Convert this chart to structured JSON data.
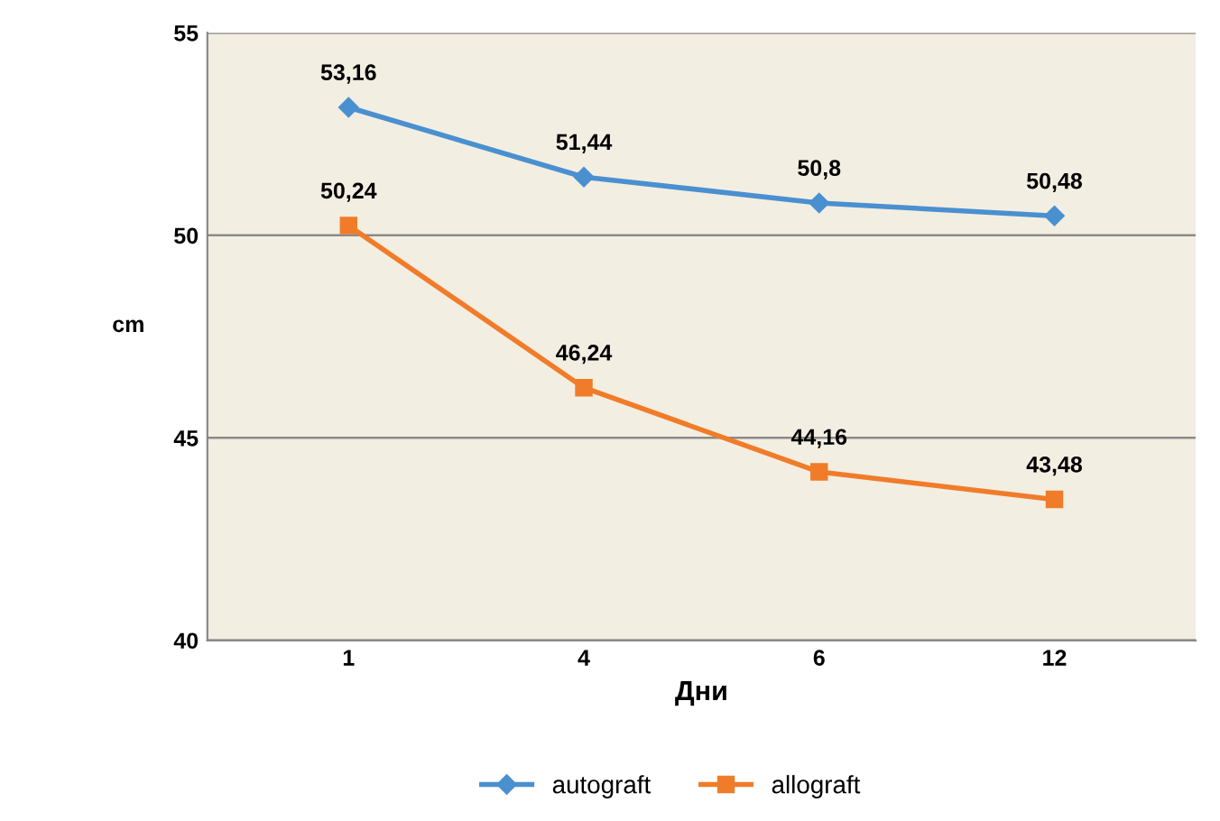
{
  "chart_data": {
    "type": "line",
    "xlabel": "Дни",
    "ylabel": "cm",
    "categories": [
      "1",
      "4",
      "6",
      "12"
    ],
    "series": [
      {
        "name": "autograft",
        "color": "#4a90d0",
        "marker": "diamond",
        "values": [
          53.16,
          51.44,
          50.8,
          50.48
        ],
        "value_labels": [
          "53,16",
          "51,44",
          "50,8",
          "50,48"
        ]
      },
      {
        "name": "allograft",
        "color": "#f07c2a",
        "marker": "square",
        "values": [
          50.24,
          46.24,
          44.16,
          43.48
        ],
        "value_labels": [
          "50,24",
          "46,24",
          "44,16",
          "43,48"
        ]
      }
    ],
    "ylim": [
      40,
      55
    ],
    "yticks": [
      40,
      45,
      50,
      55
    ],
    "grid": "y",
    "legend": "bottom",
    "line_style": "solid"
  }
}
